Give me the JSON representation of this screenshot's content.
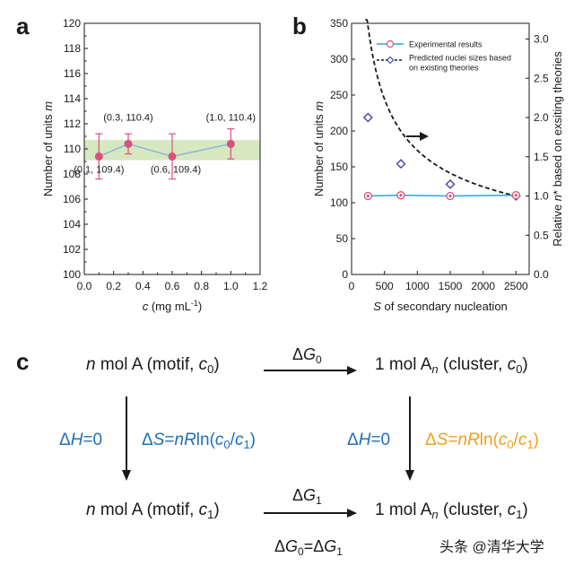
{
  "panels": {
    "a": "a",
    "b": "b",
    "c": "c"
  },
  "chart_data": [
    {
      "type": "scatter",
      "panel": "a",
      "xlabel": "c (mg mL⁻¹)",
      "ylabel": "Number of units m",
      "xlim": [
        0.0,
        1.2
      ],
      "ylim": [
        100,
        120
      ],
      "xticks": [
        "0.0",
        "0.2",
        "0.4",
        "0.6",
        "0.8",
        "1.0",
        "1.2"
      ],
      "yticks": [
        "100",
        "102",
        "104",
        "106",
        "108",
        "110",
        "112",
        "114",
        "116",
        "118",
        "120"
      ],
      "band": [
        109.1,
        110.7
      ],
      "band_color": "#d6e8c0",
      "series": [
        {
          "x": [
            0.1,
            0.3,
            0.6,
            1.0
          ],
          "y": [
            109.4,
            110.4,
            109.4,
            110.4
          ],
          "err": [
            1.8,
            0.8,
            1.8,
            1.2
          ],
          "color": "#d8527c",
          "line_color": "#8fb3da"
        }
      ],
      "annotations": [
        {
          "text": "(0.1, 109.4)",
          "x": 0.1,
          "y": 109.4
        },
        {
          "text": "(0.3, 110.4)",
          "x": 0.3,
          "y": 110.4
        },
        {
          "text": "(0.6, 109.4)",
          "x": 0.6,
          "y": 109.4
        },
        {
          "text": "(1.0, 110.4)",
          "x": 1.0,
          "y": 110.4
        }
      ]
    },
    {
      "type": "line",
      "panel": "b",
      "xlabel": "S of secondary nucleation",
      "ylabel": "Number of units m",
      "ylabel_right": "Relative n* based on exsiting theories",
      "xlim": [
        0,
        2700
      ],
      "ylim": [
        0,
        350
      ],
      "ylim_right": [
        0.0,
        3.2
      ],
      "xticks": [
        "0",
        "500",
        "1000",
        "1500",
        "2000",
        "2500"
      ],
      "yticks": [
        "0",
        "50",
        "100",
        "150",
        "200",
        "250",
        "300",
        "350"
      ],
      "yticks_right": [
        "0.0",
        "0.5",
        "1.0",
        "1.5",
        "2.0",
        "2.5",
        "3.0"
      ],
      "legend": [
        "Experimental results",
        "Predicted nuclei sizes based on existing theories"
      ],
      "legend_position": "top-right",
      "series": [
        {
          "name": "Experimental results",
          "axis": "left",
          "x": [
            250,
            750,
            1500,
            2500
          ],
          "y": [
            109.4,
            110.4,
            109.4,
            110.4
          ],
          "color": "#d8527c",
          "line_color": "#2aa6d8"
        },
        {
          "name": "Predicted nuclei sizes based on existing theories",
          "axis": "right",
          "x": [
            250,
            750,
            1500,
            2500
          ],
          "y": [
            2.0,
            1.41,
            1.15,
            1.0
          ],
          "curve": "k/sqrt(S)",
          "color": "#3b3ba8"
        }
      ]
    }
  ],
  "scheme": {
    "top_left": "n mol A (motif, c0)",
    "top_right": "1 mol An (cluster, c0)",
    "bottom_left": "n mol A (motif, c1)",
    "bottom_right": "1 mol An (cluster, c1)",
    "dG0": "ΔG0",
    "dG1": "ΔG1",
    "dH_left": "ΔH=0",
    "dS_left": "ΔS=nRln(c0/c1)",
    "dH_right": "ΔH=0",
    "dS_right": "ΔS=nRln(c0/c1)",
    "equality": "ΔG0=ΔG1",
    "colors": {
      "blue": "#1f6fb8",
      "orange": "#f0a020"
    }
  },
  "watermark": "头条 @清华大学"
}
